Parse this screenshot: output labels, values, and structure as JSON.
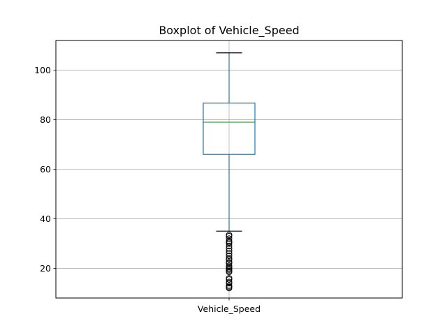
{
  "chart_data": {
    "type": "box",
    "title": "Boxplot of Vehicle_Speed",
    "categories": [
      "Vehicle_Speed"
    ],
    "ylim": [
      8,
      112
    ],
    "yticks": [
      20,
      40,
      60,
      80,
      100
    ],
    "grid": true,
    "box": {
      "whisker_low": 35,
      "q1": 66,
      "median": 79,
      "q3": 86.7,
      "whisker_high": 107
    },
    "outliers": [
      12,
      12.5,
      13,
      14,
      14.5,
      15.5,
      16,
      18.5,
      19,
      19.5,
      20,
      20.5,
      21,
      22,
      22.5,
      23.5,
      24,
      25,
      26,
      27,
      28,
      29,
      30,
      30.5,
      31,
      32,
      33,
      33.5
    ],
    "colors": {
      "box": "#1f77b4",
      "median": "#2ca02c",
      "caps": "#000000",
      "grid": "#b0b0b0"
    }
  }
}
